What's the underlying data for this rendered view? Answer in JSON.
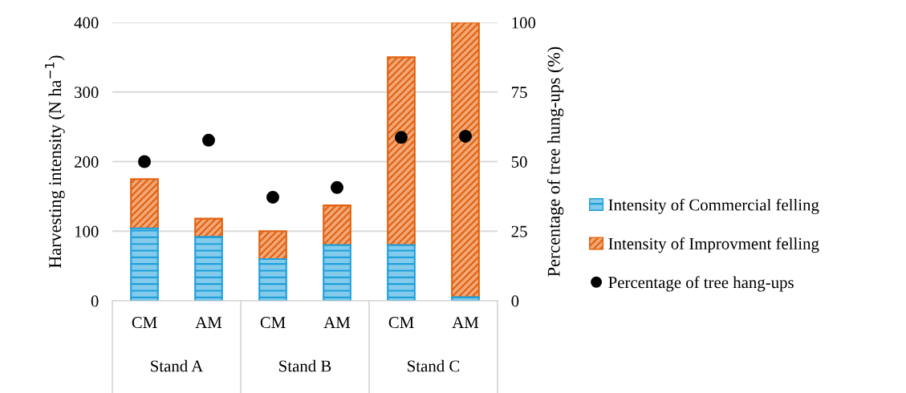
{
  "chart_data": {
    "type": "bar",
    "stacked": true,
    "ylabel": "Harvesting intensity (N ha$^{−1}$)",
    "y2label": "Percentage of tree hung-ups (%)",
    "categories": [
      "CM",
      "AM",
      "CM",
      "AM",
      "CM",
      "AM"
    ],
    "series": [
      {
        "name": "Intensity of Commercial felling",
        "color": "#1fa0db",
        "values": [
          104,
          92,
          60,
          80,
          80,
          5
        ]
      },
      {
        "name": "Intensity of Improvment felling",
        "color": "#e3600c",
        "values": [
          71,
          26,
          40,
          57,
          270,
          395
        ]
      },
      {
        "name": "Percentage of tree hang-ups",
        "type": "scatter",
        "axis": "y2",
        "color": "#000000",
        "marker": "circle",
        "values": [
          50,
          57.7,
          37.2,
          40.7,
          58.7,
          59.1
        ]
      }
    ],
    "ylim": [
      0,
      400
    ],
    "yticks": [
      0,
      100,
      200,
      300,
      400
    ],
    "y2lim": [
      0,
      100
    ],
    "y2ticks": [
      0,
      25,
      50,
      75,
      100
    ],
    "grid": "y",
    "legend": "right",
    "annotations": [
      "Stand A",
      "Stand B",
      "Stand C"
    ]
  }
}
